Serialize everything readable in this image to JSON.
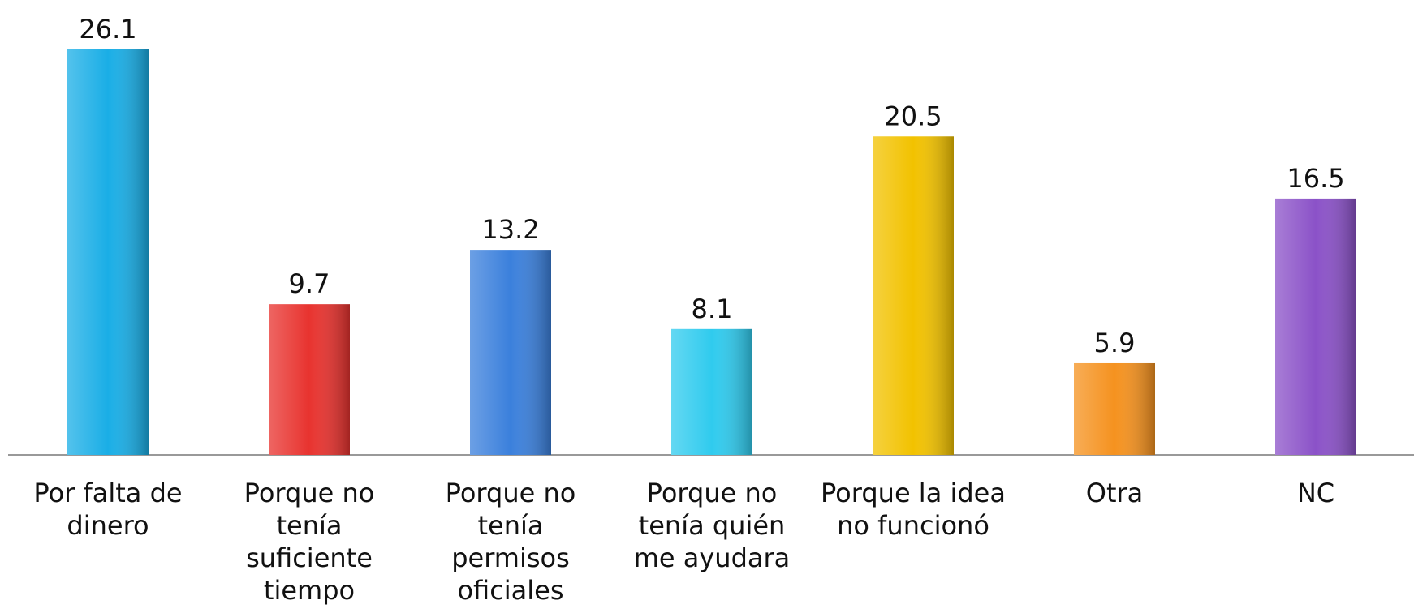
{
  "chart_data": {
    "type": "bar",
    "categories": [
      "Por falta de dinero",
      "Porque no tenía suficiente tiempo",
      "Porque no tenía permisos oficiales",
      "Porque no tenía quién me ayudara",
      "Porque la idea no funcionó",
      "Otra",
      "NC"
    ],
    "values": [
      26.1,
      9.7,
      13.2,
      8.1,
      20.5,
      5.9,
      16.5
    ],
    "colors": [
      "#1aaee6",
      "#e8332f",
      "#3b80dc",
      "#30cbee",
      "#f2c200",
      "#f5921f",
      "#8b52c8"
    ]
  }
}
